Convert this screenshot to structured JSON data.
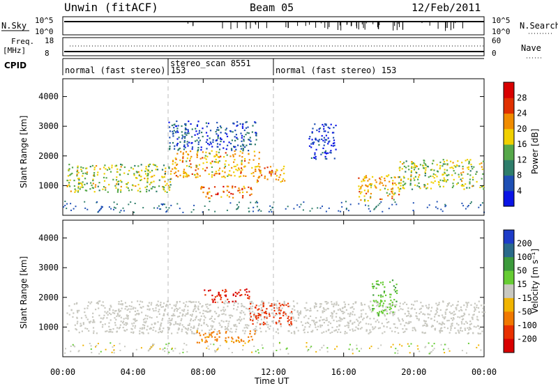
{
  "header": {
    "station": "Unwin (fitACF)",
    "beam": "Beam 05",
    "date": "12/Feb/2011"
  },
  "top_panels": {
    "nsky_label": "N.Sky",
    "nsearch_label": "N.Search",
    "nsky_ticks": [
      "10^5",
      "10^0"
    ],
    "freq_label": "Freq.",
    "freq_unit": "[MHz]",
    "freq_ticks": [
      "18",
      "8"
    ],
    "nave_label": "Nave",
    "nave_ticks": [
      "60",
      "0"
    ],
    "cpid_label": "CPID",
    "cpid_segments": [
      {
        "start_hour": 0,
        "end_hour": 6,
        "label": "normal (fast stereo) 153"
      },
      {
        "start_hour": 6,
        "end_hour": 12,
        "label": "stereo_scan 8551"
      },
      {
        "start_hour": 12,
        "end_hour": 24,
        "label": "normal (fast stereo) 153"
      }
    ]
  },
  "x_axis": {
    "label": "Time UT",
    "ticks": [
      "00:00",
      "04:00",
      "08:00",
      "12:00",
      "16:00",
      "20:00",
      "00:00"
    ]
  },
  "chart_data": [
    {
      "type": "heatmap",
      "name": "power",
      "ylabel": "Slant Range [km]",
      "yticks": [
        1000,
        2000,
        3000,
        4000
      ],
      "ylim": [
        0,
        4600
      ],
      "xlim_hours": [
        0,
        24
      ],
      "colorbar_label": "Power [dB]",
      "colorbar_ticks": [
        4,
        8,
        12,
        16,
        20,
        24,
        28
      ],
      "colorbar_colors": [
        "#0a14e6",
        "#1e4fb4",
        "#2e7d6a",
        "#56a84a",
        "#f0d000",
        "#f08c00",
        "#e03000",
        "#d80000"
      ],
      "regions": [
        {
          "hours": [
            0.2,
            6.2
          ],
          "range_km": [
            800,
            1750
          ],
          "level": 16
        },
        {
          "hours": [
            6.2,
            11.2
          ],
          "range_km": [
            1300,
            2200
          ],
          "level": 20
        },
        {
          "hours": [
            7.8,
            10.8
          ],
          "range_km": [
            600,
            1000
          ],
          "level": 24
        },
        {
          "hours": [
            11.0,
            12.6
          ],
          "range_km": [
            1100,
            1700
          ],
          "level": 22
        },
        {
          "hours": [
            16.8,
            19.2
          ],
          "range_km": [
            500,
            1400
          ],
          "level": 20
        },
        {
          "hours": [
            19.0,
            24.0
          ],
          "range_km": [
            900,
            1900
          ],
          "level": 16
        },
        {
          "hours": [
            6.0,
            11.0
          ],
          "range_km": [
            2200,
            3200
          ],
          "level": 6
        },
        {
          "hours": [
            14.0,
            15.6
          ],
          "range_km": [
            1900,
            3100
          ],
          "level": 4
        }
      ]
    },
    {
      "type": "heatmap",
      "name": "velocity",
      "ylabel": "Slant Range [km]",
      "yticks": [
        1000,
        2000,
        3000,
        4000
      ],
      "ylim": [
        0,
        4600
      ],
      "xlim_hours": [
        0,
        24
      ],
      "colorbar_label": "Velocity [m s⁻¹]",
      "colorbar_ticks": [
        200,
        100,
        50,
        15,
        -15,
        -50,
        -100,
        -200
      ],
      "colorbar_colors": [
        "#1e3cc8",
        "#2a6a8a",
        "#3c9a3c",
        "#66cc33",
        "#c8c8c0",
        "#f0b400",
        "#f07800",
        "#e83000",
        "#d80000"
      ],
      "regions": [
        {
          "hours": [
            0.2,
            24.0
          ],
          "range_km": [
            800,
            1900
          ],
          "velocity": 0
        },
        {
          "hours": [
            8.0,
            10.6
          ],
          "range_km": [
            1850,
            2300
          ],
          "velocity": -200
        },
        {
          "hours": [
            10.6,
            13.0
          ],
          "range_km": [
            1100,
            1850
          ],
          "velocity": -150
        },
        {
          "hours": [
            7.6,
            11.0
          ],
          "range_km": [
            500,
            900
          ],
          "velocity": -60
        },
        {
          "hours": [
            17.6,
            19.0
          ],
          "range_km": [
            1400,
            2600
          ],
          "velocity": 40
        }
      ]
    }
  ]
}
